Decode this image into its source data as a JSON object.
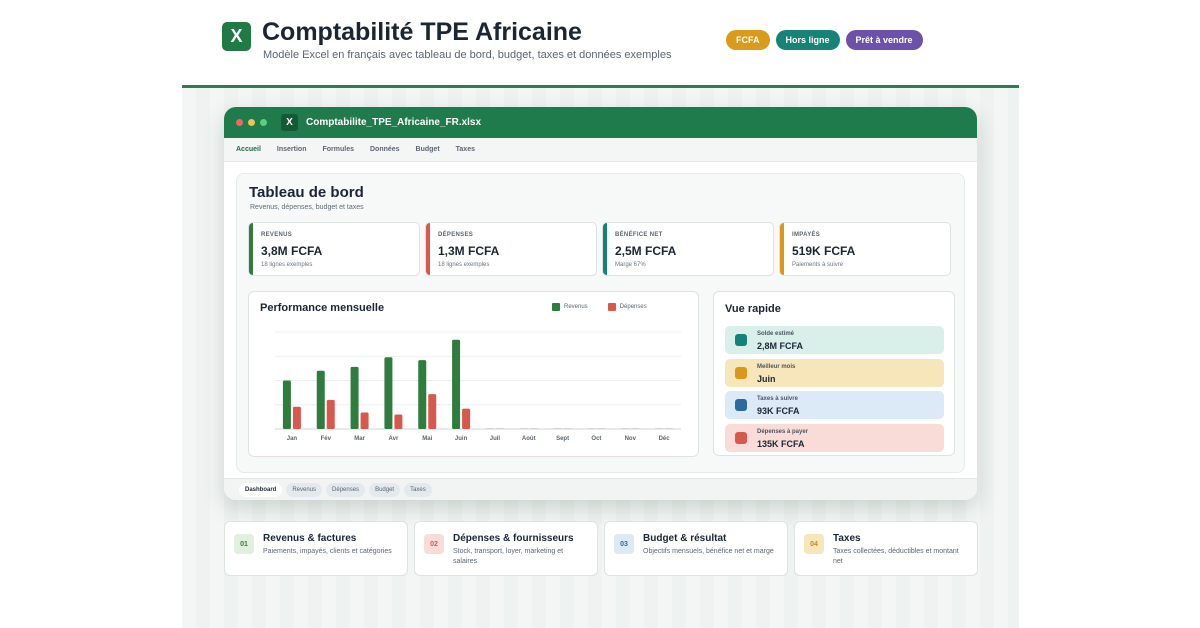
{
  "header": {
    "logo_letter": "X",
    "title": "Comptabilité TPE Africaine",
    "subtitle": "Modèle Excel en français avec tableau de bord, budget, taxes et données exemples",
    "badges": [
      {
        "label": "FCFA",
        "color": "#d89b1c"
      },
      {
        "label": "Hors ligne",
        "color": "#158476"
      },
      {
        "label": "Prêt à vendre",
        "color": "#6d51a8"
      }
    ]
  },
  "window": {
    "filename": "Comptabilite_TPE_Africaine_FR.xlsx",
    "file_icon_letter": "X",
    "ribbon": [
      "Accueil",
      "Insertion",
      "Formules",
      "Données",
      "Budget",
      "Taxes"
    ],
    "dashboard_title": "Tableau de bord",
    "dashboard_subtitle": "Revenus, dépenses, budget et taxes",
    "kpis": [
      {
        "label": "REVENUS",
        "value": "3,8M FCFA",
        "note": "18 lignes exemples",
        "color": "#2e7d3e"
      },
      {
        "label": "DÉPENSES",
        "value": "1,3M FCFA",
        "note": "18 lignes exemples",
        "color": "#d9584e"
      },
      {
        "label": "BÉNÉFICE NET",
        "value": "2,5M FCFA",
        "note": "Marge 67%",
        "color": "#13837a"
      },
      {
        "label": "IMPAYÉS",
        "value": "519K FCFA",
        "note": "Paiements à suivre",
        "color": "#d9981b"
      }
    ],
    "quick": {
      "title": "Vue rapide",
      "items": [
        {
          "label": "Solde estimé",
          "value": "2,8M FCFA",
          "bg": "#d8efea",
          "icon": "#13837a"
        },
        {
          "label": "Meilleur mois",
          "value": "Juin",
          "bg": "#f6e6b9",
          "icon": "#d9981b"
        },
        {
          "label": "Taxes à suivre",
          "value": "93K FCFA",
          "bg": "#dce9f7",
          "icon": "#2d6aa0"
        },
        {
          "label": "Dépenses à payer",
          "value": "135K FCFA",
          "bg": "#f9dcd8",
          "icon": "#d9584e"
        }
      ]
    },
    "sheet_tabs": [
      "Dashboard",
      "Revenus",
      "Dépenses",
      "Budget",
      "Taxes"
    ]
  },
  "chart_data": {
    "type": "bar",
    "title": "Performance mensuelle",
    "categories": [
      "Jan",
      "Fév",
      "Mar",
      "Avr",
      "Mai",
      "Juin",
      "Juil",
      "Août",
      "Sept",
      "Oct",
      "Nov",
      "Déc"
    ],
    "series": [
      {
        "name": "Revenus",
        "color": "#2e7d3e",
        "values": [
          50,
          60,
          64,
          74,
          71,
          92,
          0,
          0,
          0,
          0,
          0,
          0
        ]
      },
      {
        "name": "Dépenses",
        "color": "#d9584e",
        "values": [
          23,
          30,
          17,
          15,
          36,
          21,
          0,
          0,
          0,
          0,
          0,
          0
        ]
      }
    ],
    "ylim": [
      0,
      100
    ],
    "grid": true,
    "legend": "top-right"
  },
  "features": [
    {
      "num": "01",
      "title": "Revenus & factures",
      "desc": "Paiements, impayés, clients et catégories",
      "bg": "#dff0df",
      "fg": "#2e7d3e"
    },
    {
      "num": "02",
      "title": "Dépenses & fournisseurs",
      "desc": "Stock, transport, loyer, marketing et salaires",
      "bg": "#f9dcd8",
      "fg": "#d9584e"
    },
    {
      "num": "03",
      "title": "Budget & résultat",
      "desc": "Objectifs mensuels, bénéfice net et marge",
      "bg": "#dce9f7",
      "fg": "#2d6aa0"
    },
    {
      "num": "04",
      "title": "Taxes",
      "desc": "Taxes collectées, déductibles et montant net",
      "bg": "#f6e6b9",
      "fg": "#c98b14"
    }
  ]
}
